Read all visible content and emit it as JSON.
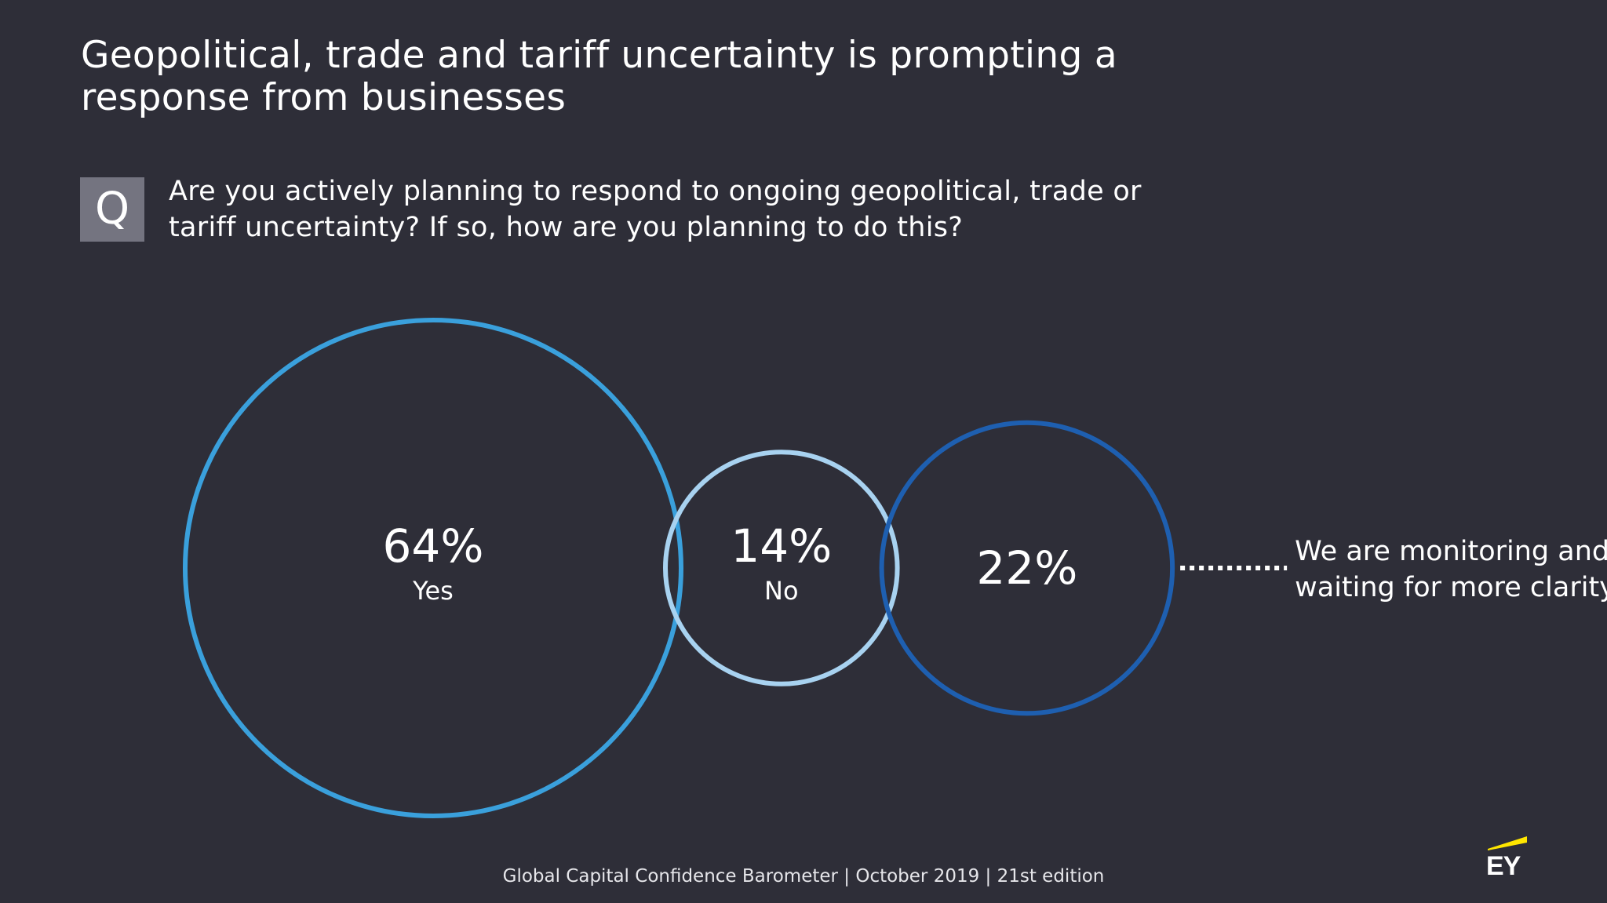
{
  "title": "Geopolitical, trade and tariff uncertainty is prompting a response from businesses",
  "question": {
    "badge": "Q",
    "text": "Are you actively planning to respond to ongoing geopolitical, trade or tariff uncertainty? If so, how are you planning to do this?"
  },
  "chart_data": {
    "type": "bubble",
    "series": [
      {
        "label": "Yes",
        "value": 64,
        "display": "64%",
        "color": "#3aa0dc"
      },
      {
        "label": "No",
        "value": 14,
        "display": "14%",
        "color": "#a8d2f0"
      },
      {
        "label": "",
        "value": 22,
        "display": "22%",
        "color": "#1e5fb0"
      }
    ],
    "annotation": {
      "target": "22%",
      "lines": [
        "We are monitoring and",
        "waiting for more clarity"
      ]
    }
  },
  "footer": "Global Capital Confidence Barometer | October 2019 | 21st edition",
  "brand": {
    "logo_text": "EY",
    "accent": "#ffe600"
  }
}
